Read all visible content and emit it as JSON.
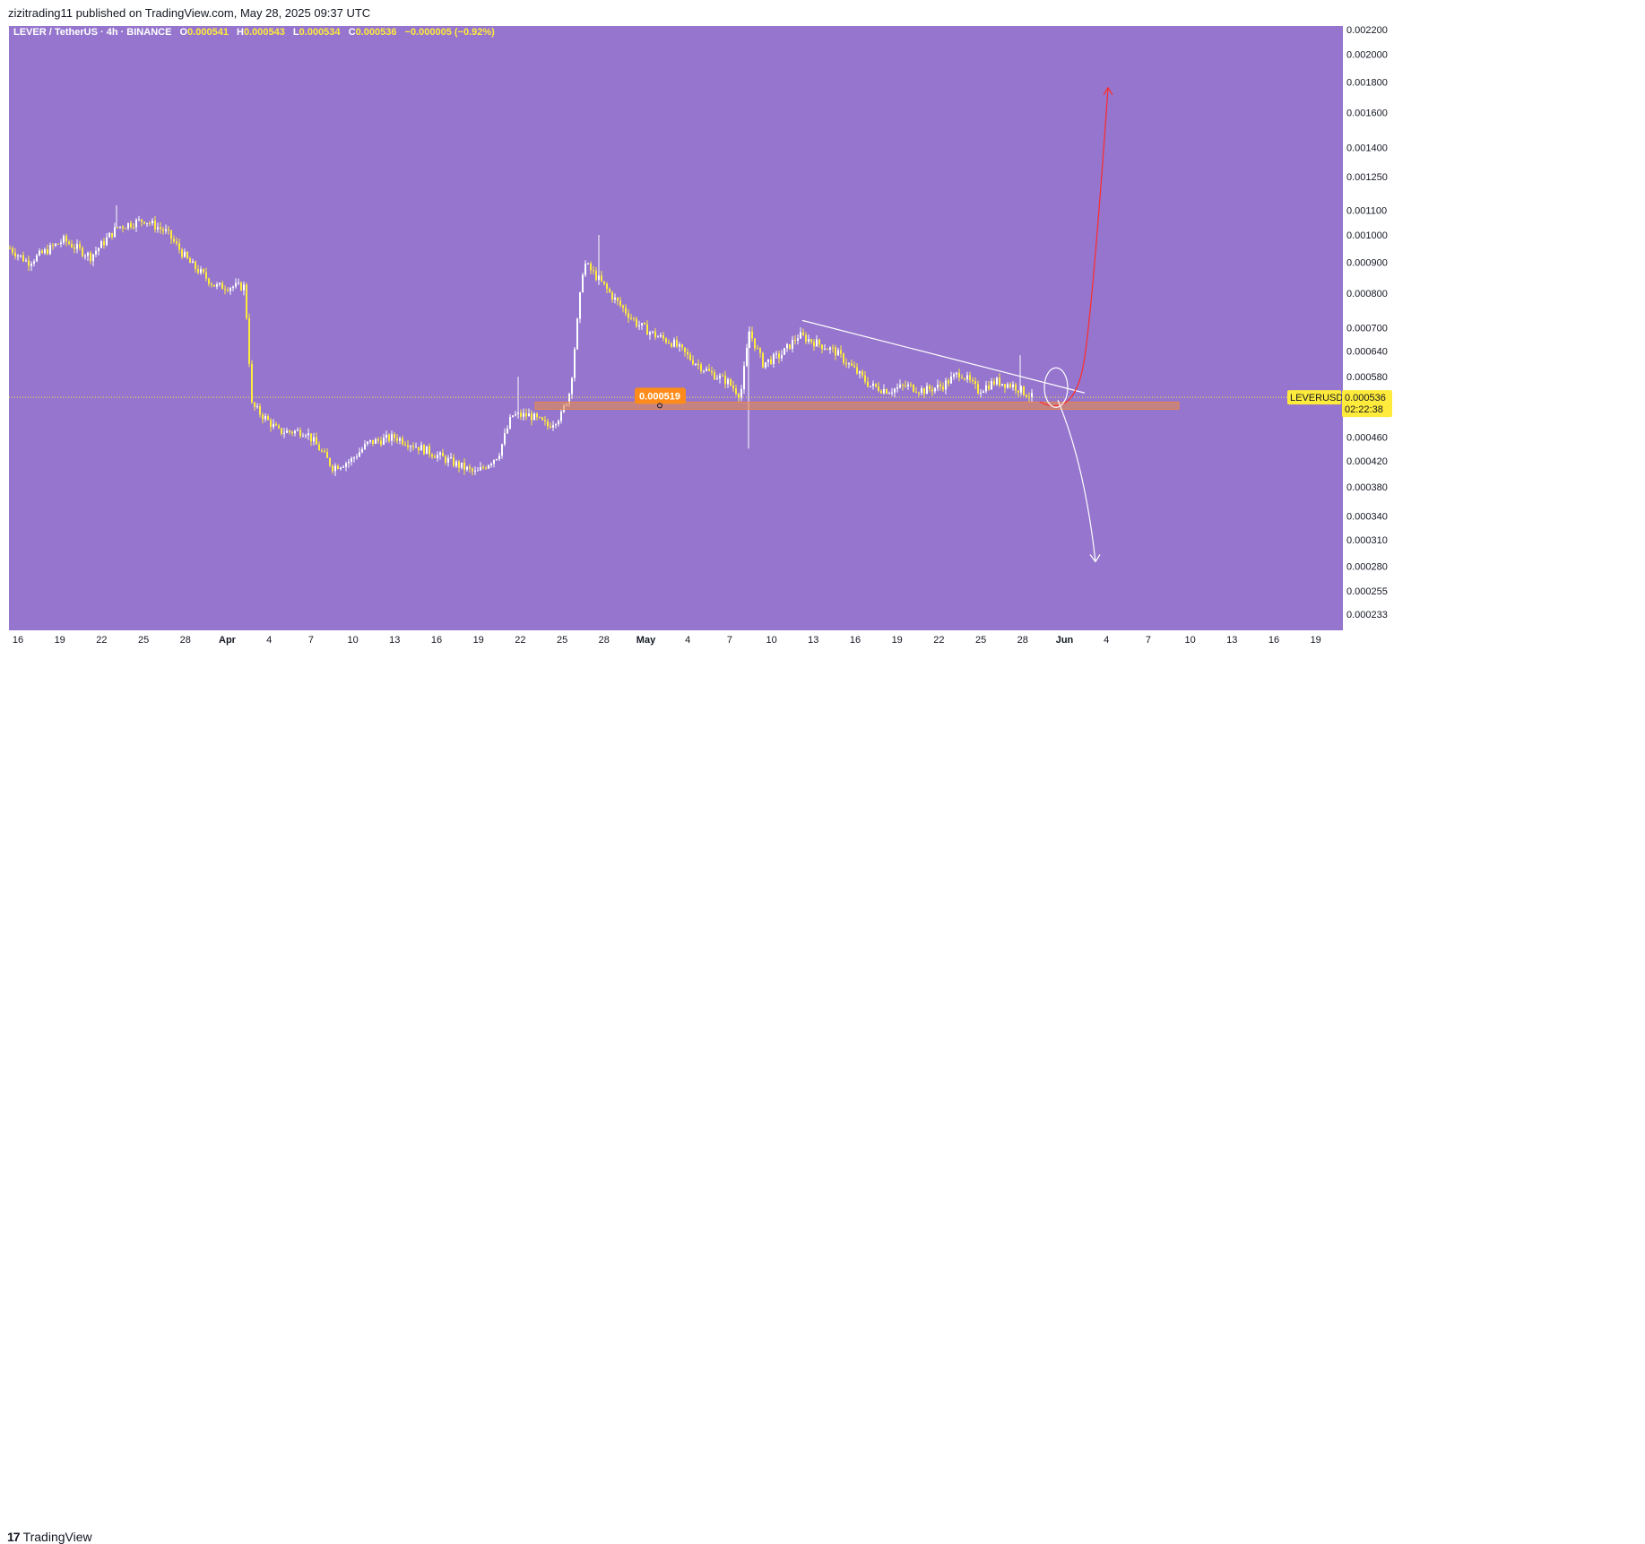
{
  "header": {
    "published_by": "zizitrading11 published on TradingView.com, May 28, 2025 09:37 UTC"
  },
  "footer": {
    "brand": "TradingView"
  },
  "chart_data": {
    "type": "candlestick",
    "symbol_line": {
      "symbol": "LEVER / TetherUS · 4h · BINANCE",
      "o_label": "O",
      "o": "0.000541",
      "h_label": "H",
      "h": "0.000543",
      "l_label": "L",
      "l": "0.000534",
      "c_label": "C",
      "c": "0.000536",
      "change": "−0.000005 (−0.92%)"
    },
    "y_axis": {
      "scale": "log",
      "ticks": [
        "0.002200",
        "0.002000",
        "0.001800",
        "0.001600",
        "0.001400",
        "0.001250",
        "0.001100",
        "0.001000",
        "0.000900",
        "0.000800",
        "0.000700",
        "0.000640",
        "0.000580",
        "0.000460",
        "0.000420",
        "0.000380",
        "0.000340",
        "0.000310",
        "0.000280",
        "0.000255",
        "0.000233"
      ]
    },
    "x_axis": {
      "ticks": [
        "16",
        "19",
        "22",
        "25",
        "28",
        "Apr",
        "4",
        "7",
        "10",
        "13",
        "16",
        "19",
        "22",
        "25",
        "28",
        "May",
        "4",
        "7",
        "10",
        "13",
        "16",
        "19",
        "22",
        "25",
        "28",
        "Jun",
        "4",
        "7",
        "10",
        "13",
        "16",
        "19"
      ]
    },
    "price_path": [
      [
        0,
        0.00095
      ],
      [
        20,
        0.0009
      ],
      [
        60,
        0.00098
      ],
      [
        90,
        0.00092
      ],
      [
        120,
        0.00103
      ],
      [
        150,
        0.00106
      ],
      [
        175,
        0.00101
      ],
      [
        200,
        0.0009
      ],
      [
        230,
        0.00082
      ],
      [
        262,
        0.00082
      ],
      [
        270,
        0.00052
      ],
      [
        300,
        0.00047
      ],
      [
        330,
        0.00047
      ],
      [
        345,
        0.00044
      ],
      [
        360,
        0.00041
      ],
      [
        380,
        0.00042
      ],
      [
        400,
        0.00045
      ],
      [
        430,
        0.00046
      ],
      [
        460,
        0.00044
      ],
      [
        490,
        0.00042
      ],
      [
        520,
        0.0004
      ],
      [
        545,
        0.00043
      ],
      [
        560,
        0.0005
      ],
      [
        580,
        0.0005
      ],
      [
        600,
        0.00048
      ],
      [
        615,
        0.0005
      ],
      [
        625,
        0.00055
      ],
      [
        640,
        0.0009
      ],
      [
        655,
        0.00085
      ],
      [
        675,
        0.00078
      ],
      [
        700,
        0.00071
      ],
      [
        720,
        0.00068
      ],
      [
        740,
        0.00066
      ],
      [
        760,
        0.00062
      ],
      [
        780,
        0.00059
      ],
      [
        800,
        0.00057
      ],
      [
        815,
        0.00054
      ],
      [
        825,
        0.00069
      ],
      [
        840,
        0.00061
      ],
      [
        860,
        0.00063
      ],
      [
        880,
        0.00068
      ],
      [
        900,
        0.00066
      ],
      [
        920,
        0.00064
      ],
      [
        940,
        0.0006
      ],
      [
        960,
        0.00056
      ],
      [
        980,
        0.00055
      ],
      [
        1000,
        0.00056
      ],
      [
        1020,
        0.00055
      ],
      [
        1040,
        0.00056
      ],
      [
        1060,
        0.00059
      ],
      [
        1080,
        0.00055
      ],
      [
        1100,
        0.00057
      ],
      [
        1120,
        0.00056
      ],
      [
        1140,
        0.000536
      ]
    ],
    "support_level": {
      "label": "0.000519",
      "value": 0.000519
    },
    "trendline": {
      "from": [
        885,
        0.00072
      ],
      "to": [
        1200,
        0.000545
      ]
    },
    "projection_up": {
      "target": 0.00176
    },
    "projection_down": {
      "target": 0.000285
    },
    "last_price": {
      "symbol": "LEVERUSDT",
      "value": "0.000536",
      "countdown": "02:22:38"
    },
    "colors": {
      "background": "#9575cd",
      "candle": "#ffeb3b",
      "support_zone": "#e58a50",
      "support_label": "#ff8c1a",
      "trendline": "#ffffff",
      "up_arrow": "#ff2b2b",
      "down_arrow": "#ffffff",
      "price_tag": "#ffeb3b"
    }
  }
}
